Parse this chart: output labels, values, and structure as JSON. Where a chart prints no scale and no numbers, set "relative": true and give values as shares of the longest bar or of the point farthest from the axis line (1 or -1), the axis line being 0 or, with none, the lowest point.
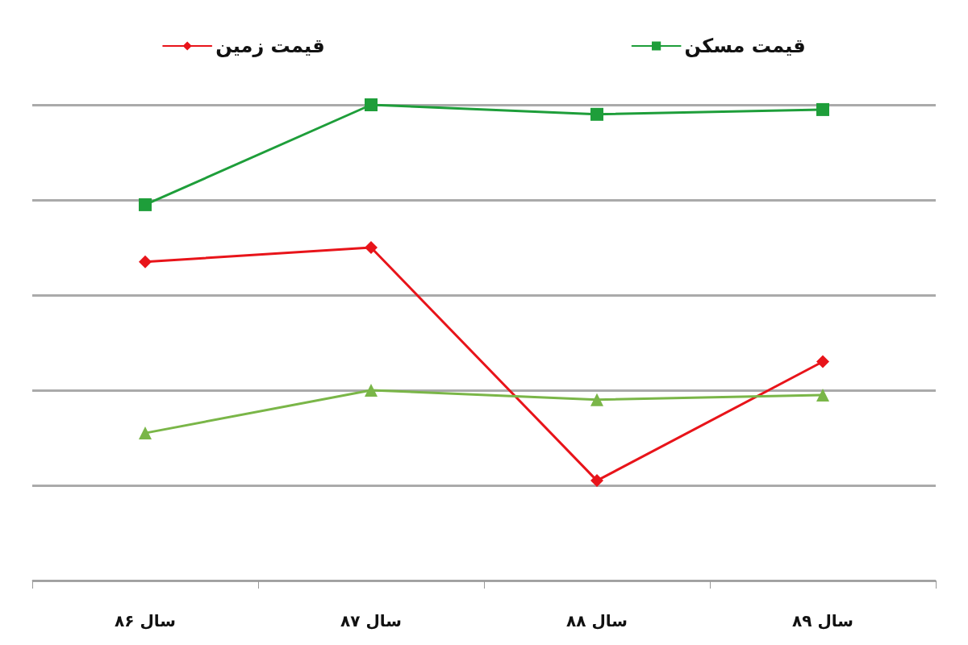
{
  "chart_data": {
    "type": "line",
    "relative": true,
    "categories": [
      "سال ۸۶",
      "سال ۸۷",
      "سال ۸۸",
      "سال ۸۹"
    ],
    "series": [
      {
        "name": "قیمت زمین",
        "color": "#e8141a",
        "marker": "diamond",
        "values": [
          0.67,
          0.7,
          0.21,
          0.46
        ]
      },
      {
        "name": "قیمت مسکن",
        "color": "#1e9e3a",
        "marker": "square",
        "values": [
          0.79,
          1,
          0.98,
          0.99
        ]
      },
      {
        "color": "#7ab648",
        "marker": "triangle",
        "values": [
          0.31,
          0.4,
          0.38,
          0.39
        ]
      }
    ],
    "grid": "y",
    "legend": "top",
    "line_style": "solid"
  }
}
